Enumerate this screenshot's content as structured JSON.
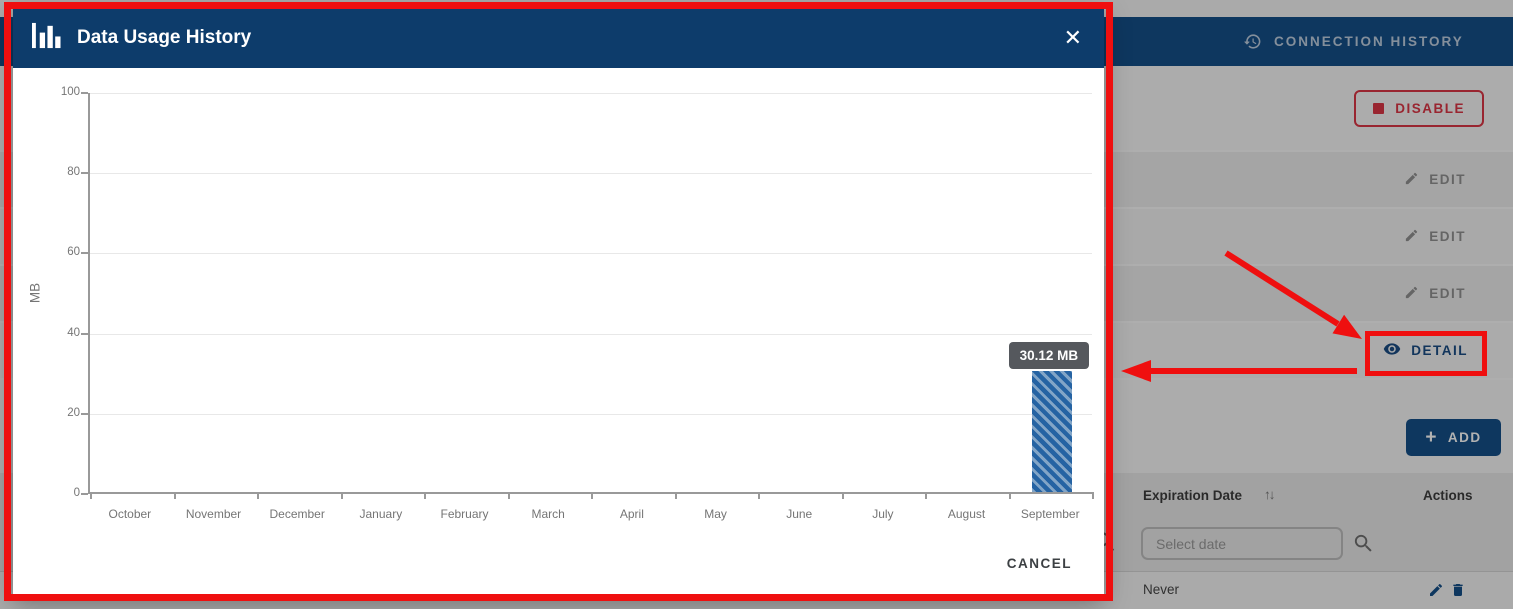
{
  "modal": {
    "title": "Data Usage History",
    "close_label": "✕",
    "cancel_label": "CANCEL"
  },
  "chart_data": {
    "type": "bar",
    "title": "Data Usage History",
    "ylabel": "MB",
    "ylim": [
      0,
      100
    ],
    "yticks": [
      0,
      20,
      40,
      60,
      80,
      100
    ],
    "grid": true,
    "legend": false,
    "categories": [
      "October",
      "November",
      "December",
      "January",
      "February",
      "March",
      "April",
      "May",
      "June",
      "July",
      "August",
      "September"
    ],
    "values": [
      0,
      0,
      0,
      0,
      0,
      0,
      0,
      0,
      0,
      0,
      0,
      30.12
    ],
    "tooltip": {
      "month": "September",
      "label": "30.12 MB"
    }
  },
  "background": {
    "topbar": {
      "tab": "CONNECTION HISTORY"
    },
    "action_rows": [
      {
        "label": "DISABLE"
      },
      {
        "label": "EDIT"
      },
      {
        "label": "EDIT"
      },
      {
        "label": "EDIT"
      },
      {
        "label": "DETAIL"
      }
    ],
    "add_button": {
      "label": "ADD",
      "icon": "+"
    },
    "table": {
      "columns": [
        "Expiration Date",
        "Actions"
      ],
      "sort_icon": "↑↓",
      "filter_placeholder": "Select date",
      "rows": [
        {
          "expiration": "Never"
        }
      ]
    }
  },
  "colors": {
    "modal_header_navy": "#0d3c6b",
    "background_navy": "#155089",
    "danger_red": "#dc3545",
    "annotation_red": "#ef0f0f",
    "bar_stripe_dark": "#2563a3",
    "bar_stripe_light": "#82a5c7",
    "tooltip_bg": "#55585d"
  }
}
